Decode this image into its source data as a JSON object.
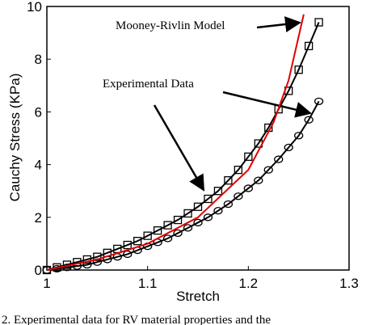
{
  "chart_data": {
    "type": "line",
    "xlabel": "Stretch",
    "ylabel": "Cauchy Stress (KPa)",
    "xlim": [
      1,
      1.3
    ],
    "ylim": [
      0,
      10
    ],
    "xticks": [
      1,
      1.1,
      1.2,
      1.3
    ],
    "yticks": [
      0,
      2,
      4,
      6,
      8,
      10
    ],
    "grid": false,
    "annotations": [
      "Mooney-Rivlin Model",
      "Experimental Data"
    ],
    "caption": "2. Experimental data for RV material properties and the",
    "series": [
      {
        "color": "#000000",
        "marker": "square",
        "x": [
          1.0,
          1.01,
          1.02,
          1.03,
          1.04,
          1.05,
          1.06,
          1.07,
          1.08,
          1.09,
          1.1,
          1.11,
          1.12,
          1.13,
          1.14,
          1.15,
          1.16,
          1.17,
          1.18,
          1.19,
          1.2,
          1.21,
          1.22,
          1.23,
          1.24,
          1.25,
          1.26,
          1.27
        ],
        "values": [
          0.0,
          0.1,
          0.2,
          0.3,
          0.4,
          0.5,
          0.65,
          0.8,
          0.95,
          1.1,
          1.3,
          1.5,
          1.7,
          1.9,
          2.15,
          2.4,
          2.7,
          3.0,
          3.4,
          3.8,
          4.3,
          4.8,
          5.4,
          6.1,
          6.8,
          7.6,
          8.5,
          9.4
        ]
      },
      {
        "color": "#000000",
        "marker": "circle",
        "x": [
          1.0,
          1.01,
          1.02,
          1.03,
          1.04,
          1.05,
          1.06,
          1.07,
          1.08,
          1.09,
          1.1,
          1.11,
          1.12,
          1.13,
          1.14,
          1.15,
          1.16,
          1.17,
          1.18,
          1.19,
          1.2,
          1.21,
          1.22,
          1.23,
          1.24,
          1.25,
          1.26,
          1.27
        ],
        "values": [
          0.0,
          0.05,
          0.1,
          0.15,
          0.2,
          0.3,
          0.4,
          0.5,
          0.6,
          0.75,
          0.9,
          1.05,
          1.2,
          1.4,
          1.6,
          1.8,
          2.0,
          2.25,
          2.5,
          2.8,
          3.1,
          3.4,
          3.8,
          4.2,
          4.65,
          5.1,
          5.7,
          6.4
        ]
      },
      {
        "color": "#e00000",
        "marker": "none",
        "x": [
          1.0,
          1.05,
          1.1,
          1.15,
          1.2,
          1.225,
          1.24,
          1.255
        ],
        "values": [
          0.0,
          0.4,
          1.0,
          2.0,
          3.8,
          5.6,
          7.2,
          9.7
        ]
      }
    ]
  }
}
